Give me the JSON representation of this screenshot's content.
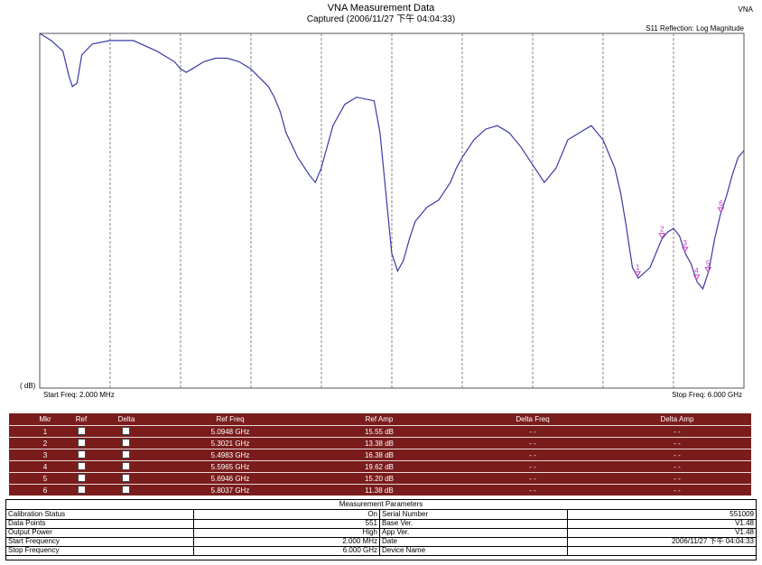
{
  "header": {
    "title": "VNA Measurement Data",
    "subtitle": "Captured  (2006/11/27 下午 04:04:33)",
    "corner_tag": "VNA"
  },
  "plot": {
    "trace_label": "S11 Reflection: Log Magnitude",
    "y_unit": "( dB)",
    "start_freq": "Start Freq: 2.000 MHz",
    "stop_freq": "Stop Freq: 6.000 GHz",
    "trace_color": "#3a3aa6",
    "marker_color": "#c040c0"
  },
  "chart_data": {
    "type": "line",
    "x_range_ghz": [
      0.002,
      6.0
    ],
    "x_gridlines": 9,
    "y_scale_note": "vertical position only, no printed y ticks",
    "series": [
      {
        "x": [
          0.002,
          0.1,
          0.2,
          0.25,
          0.28,
          0.32,
          0.36,
          0.45,
          0.6,
          0.8,
          1.0,
          1.15,
          1.2,
          1.25,
          1.3,
          1.4,
          1.5,
          1.6,
          1.7,
          1.8,
          1.95,
          2.0,
          2.05,
          2.1,
          2.2,
          2.3,
          2.35,
          2.4,
          2.5,
          2.6,
          2.7,
          2.85,
          2.9,
          2.95,
          3.0,
          3.05,
          3.1,
          3.15,
          3.2,
          3.3,
          3.4,
          3.5,
          3.55,
          3.6,
          3.7,
          3.8,
          3.9,
          4.0,
          4.1,
          4.2,
          4.3,
          4.4,
          4.5,
          4.6,
          4.7,
          4.8,
          4.9,
          4.95,
          5.0,
          5.05,
          5.1,
          5.2,
          5.3,
          5.35,
          5.4,
          5.45,
          5.5,
          5.55,
          5.6,
          5.65,
          5.7,
          5.75,
          5.8,
          5.85,
          5.9,
          5.95,
          6.0
        ],
        "y": [
          0.0,
          0.02,
          0.05,
          0.12,
          0.15,
          0.14,
          0.06,
          0.03,
          0.02,
          0.02,
          0.05,
          0.08,
          0.1,
          0.11,
          0.1,
          0.08,
          0.07,
          0.07,
          0.08,
          0.1,
          0.15,
          0.18,
          0.22,
          0.28,
          0.35,
          0.4,
          0.42,
          0.38,
          0.26,
          0.2,
          0.18,
          0.19,
          0.28,
          0.45,
          0.62,
          0.67,
          0.64,
          0.58,
          0.53,
          0.49,
          0.47,
          0.42,
          0.38,
          0.35,
          0.3,
          0.27,
          0.26,
          0.28,
          0.32,
          0.37,
          0.42,
          0.38,
          0.3,
          0.28,
          0.26,
          0.3,
          0.38,
          0.45,
          0.55,
          0.66,
          0.69,
          0.66,
          0.58,
          0.56,
          0.55,
          0.57,
          0.62,
          0.65,
          0.7,
          0.72,
          0.67,
          0.58,
          0.51,
          0.46,
          0.4,
          0.35,
          0.33
        ]
      }
    ],
    "markers": [
      {
        "n": "1",
        "x": 5.0948
      },
      {
        "n": "2",
        "x": 5.3021
      },
      {
        "n": "3",
        "x": 5.4983
      },
      {
        "n": "4",
        "x": 5.5965
      },
      {
        "n": "5",
        "x": 5.6946
      },
      {
        "n": "6",
        "x": 5.8037
      }
    ]
  },
  "marker_table": {
    "headers": [
      "Mkr",
      "Ref",
      "Delta",
      "Ref Freq",
      "Ref Amp",
      "Delta Freq",
      "Delta Amp"
    ],
    "rows": [
      {
        "mkr": "1",
        "freq": "5.0948 GHz",
        "amp": "15.55 dB",
        "dfreq": "- -",
        "damp": "- -"
      },
      {
        "mkr": "2",
        "freq": "5.3021 GHz",
        "amp": "13.38 dB",
        "dfreq": "- -",
        "damp": "- -"
      },
      {
        "mkr": "3",
        "freq": "5.4983 GHz",
        "amp": "16.38 dB",
        "dfreq": "- -",
        "damp": "- -"
      },
      {
        "mkr": "4",
        "freq": "5.5965 GHz",
        "amp": "19.62 dB",
        "dfreq": "- -",
        "damp": "- -"
      },
      {
        "mkr": "5",
        "freq": "5.6946 GHz",
        "amp": "15.20 dB",
        "dfreq": "- -",
        "damp": "- -"
      },
      {
        "mkr": "6",
        "freq": "5.8037 GHz",
        "amp": "11.38 dB",
        "dfreq": "- -",
        "damp": "- -"
      }
    ]
  },
  "measurement_params": {
    "title": "Measurement Parameters",
    "rows": [
      {
        "l1": "Calibration Status",
        "v1": "On",
        "l2": "Serial Number",
        "v2": "551009"
      },
      {
        "l1": "Data Points",
        "v1": "551",
        "l2": "Base Ver.",
        "v2": "V1.48"
      },
      {
        "l1": "Output Power",
        "v1": "High",
        "l2": "App Ver.",
        "v2": "V1.48"
      },
      {
        "l1": "Start Frequency",
        "v1": "2.000 MHz",
        "l2": "Date",
        "v2": "2006/11/27 下午 04:04:33"
      },
      {
        "l1": "Stop Frequency",
        "v1": "6.000 GHz",
        "l2": "Device Name",
        "v2": ""
      }
    ]
  }
}
